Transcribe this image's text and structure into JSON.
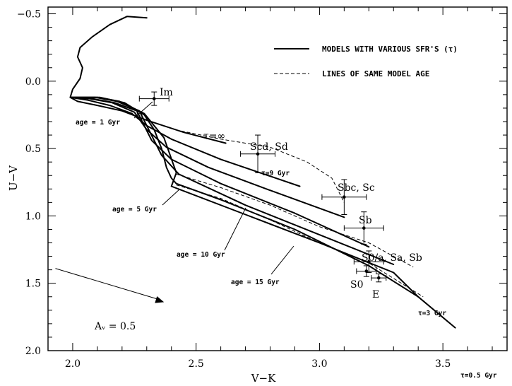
{
  "chart_data": {
    "type": "line",
    "xlabel": "V−K",
    "ylabel": "U−V",
    "xlim": [
      1.9,
      3.76
    ],
    "ylim": [
      2.0,
      -0.55
    ],
    "y_inverted": true,
    "x_ticks": [
      2.0,
      2.5,
      3.0,
      3.5
    ],
    "x_tick_labels": [
      "2.0",
      "2.5",
      "3.0",
      "3.5"
    ],
    "y_ticks": [
      -0.5,
      0.0,
      0.5,
      1.0,
      1.5,
      2.0
    ],
    "y_tick_labels": [
      "−0.5",
      "0.0",
      "0.5",
      "1.0",
      "1.5",
      "2.0"
    ],
    "grid": false,
    "legend_placement": "top-right",
    "legend": [
      {
        "label": "MODELS WITH VARIOUS SFR'S (τ)",
        "style": "solid"
      },
      {
        "label": "LINES OF SAME MODEL AGE",
        "style": "dashed"
      }
    ],
    "observations": [
      {
        "label": "Im",
        "x": 2.33,
        "y": 0.13,
        "xerr": 0.06,
        "yerr": 0.05
      },
      {
        "label": "Scd, Sd",
        "x": 2.75,
        "y": 0.54,
        "xerr": 0.07,
        "yerr": 0.14
      },
      {
        "label": "Sbc, Sc",
        "x": 3.1,
        "y": 0.86,
        "xerr": 0.09,
        "yerr": 0.13
      },
      {
        "label": "Sb",
        "x": 3.18,
        "y": 1.09,
        "xerr": 0.08,
        "yerr": 0.12
      },
      {
        "label": "S0/a, Sa, Sb",
        "x": 3.2,
        "y": 1.34,
        "xerr": 0.06,
        "yerr": 0.08
      },
      {
        "label": "S0",
        "x": 3.19,
        "y": 1.41,
        "xerr": 0.04,
        "yerr": 0.04
      },
      {
        "label": "E",
        "x": 3.24,
        "y": 1.46,
        "xerr": 0.03,
        "yerr": 0.03
      }
    ],
    "model_tracks": [
      {
        "label": "τ=∞",
        "points": [
          [
            2.3,
            -0.47
          ],
          [
            2.22,
            -0.48
          ],
          [
            2.15,
            -0.42
          ],
          [
            2.08,
            -0.33
          ],
          [
            2.03,
            -0.25
          ],
          [
            2.02,
            -0.18
          ],
          [
            2.04,
            -0.1
          ],
          [
            2.03,
            -0.02
          ],
          [
            2.0,
            0.06
          ],
          [
            1.99,
            0.12
          ],
          [
            2.02,
            0.15
          ],
          [
            2.1,
            0.18
          ],
          [
            2.2,
            0.22
          ],
          [
            2.3,
            0.29
          ],
          [
            2.45,
            0.38
          ],
          [
            2.62,
            0.46
          ]
        ]
      },
      {
        "label": "τ=9 Gyr",
        "points": [
          [
            1.99,
            0.12
          ],
          [
            2.06,
            0.14
          ],
          [
            2.15,
            0.18
          ],
          [
            2.24,
            0.24
          ],
          [
            2.3,
            0.33
          ],
          [
            2.4,
            0.43
          ],
          [
            2.6,
            0.58
          ],
          [
            2.92,
            0.78
          ]
        ]
      },
      {
        "label": "",
        "points": [
          [
            1.99,
            0.12
          ],
          [
            2.07,
            0.13
          ],
          [
            2.16,
            0.16
          ],
          [
            2.25,
            0.23
          ],
          [
            2.3,
            0.36
          ],
          [
            2.38,
            0.49
          ],
          [
            2.55,
            0.64
          ],
          [
            2.8,
            0.81
          ],
          [
            3.1,
            1.01
          ]
        ]
      },
      {
        "label": "",
        "points": [
          [
            1.99,
            0.12
          ],
          [
            2.08,
            0.13
          ],
          [
            2.17,
            0.16
          ],
          [
            2.26,
            0.22
          ],
          [
            2.32,
            0.44
          ],
          [
            2.4,
            0.58
          ],
          [
            2.6,
            0.76
          ],
          [
            2.9,
            0.98
          ],
          [
            3.2,
            1.23
          ]
        ]
      },
      {
        "label": "",
        "points": [
          [
            1.99,
            0.12
          ],
          [
            2.09,
            0.12
          ],
          [
            2.18,
            0.15
          ],
          [
            2.27,
            0.22
          ],
          [
            2.36,
            0.55
          ],
          [
            2.43,
            0.69
          ],
          [
            2.7,
            0.92
          ],
          [
            3.0,
            1.14
          ],
          [
            3.3,
            1.36
          ]
        ]
      },
      {
        "label": "τ=3 Gyr",
        "points": [
          [
            1.99,
            0.12
          ],
          [
            2.1,
            0.12
          ],
          [
            2.19,
            0.15
          ],
          [
            2.29,
            0.24
          ],
          [
            2.37,
            0.42
          ],
          [
            2.42,
            0.68
          ],
          [
            2.4,
            0.78
          ],
          [
            2.7,
            0.99
          ],
          [
            3.0,
            1.2
          ],
          [
            3.3,
            1.42
          ],
          [
            3.4,
            1.6
          ]
        ]
      },
      {
        "label": "τ=0.5 Gyr",
        "points": [
          [
            1.99,
            0.12
          ],
          [
            2.11,
            0.12
          ],
          [
            2.21,
            0.16
          ],
          [
            2.29,
            0.25
          ],
          [
            2.33,
            0.36
          ],
          [
            2.36,
            0.5
          ],
          [
            2.38,
            0.64
          ],
          [
            2.4,
            0.72
          ],
          [
            2.42,
            0.76
          ],
          [
            2.6,
            0.88
          ],
          [
            2.9,
            1.1
          ],
          [
            3.2,
            1.37
          ],
          [
            3.4,
            1.6
          ],
          [
            3.55,
            1.83
          ]
        ]
      }
    ],
    "age_lines": [
      {
        "label": "age = 1 Gyr",
        "points": [
          [
            2.26,
            0.23
          ],
          [
            2.27,
            0.28
          ],
          [
            2.28,
            0.3
          ]
        ]
      },
      {
        "label": "age = 5 Gyr",
        "points": [
          [
            2.44,
            0.37
          ],
          [
            2.6,
            0.43
          ],
          [
            2.8,
            0.49
          ],
          [
            2.95,
            0.6
          ],
          [
            3.05,
            0.72
          ],
          [
            3.1,
            0.9
          ]
        ]
      },
      {
        "label": "age = 10 Gyr",
        "points": [
          [
            2.42,
            0.69
          ],
          [
            2.6,
            0.79
          ],
          [
            2.8,
            0.92
          ],
          [
            3.0,
            1.08
          ],
          [
            3.2,
            1.2
          ],
          [
            3.38,
            1.38
          ]
        ]
      },
      {
        "label": "age = 15 Gyr",
        "points": [
          [
            2.42,
            0.77
          ],
          [
            2.6,
            0.87
          ],
          [
            2.8,
            1.03
          ],
          [
            3.0,
            1.2
          ],
          [
            3.2,
            1.35
          ],
          [
            3.42,
            1.6
          ]
        ]
      }
    ],
    "reddening_vector": {
      "label": "Aᵥ = 0.5",
      "from": [
        1.93,
        1.39
      ],
      "to": [
        2.37,
        1.64
      ]
    }
  }
}
